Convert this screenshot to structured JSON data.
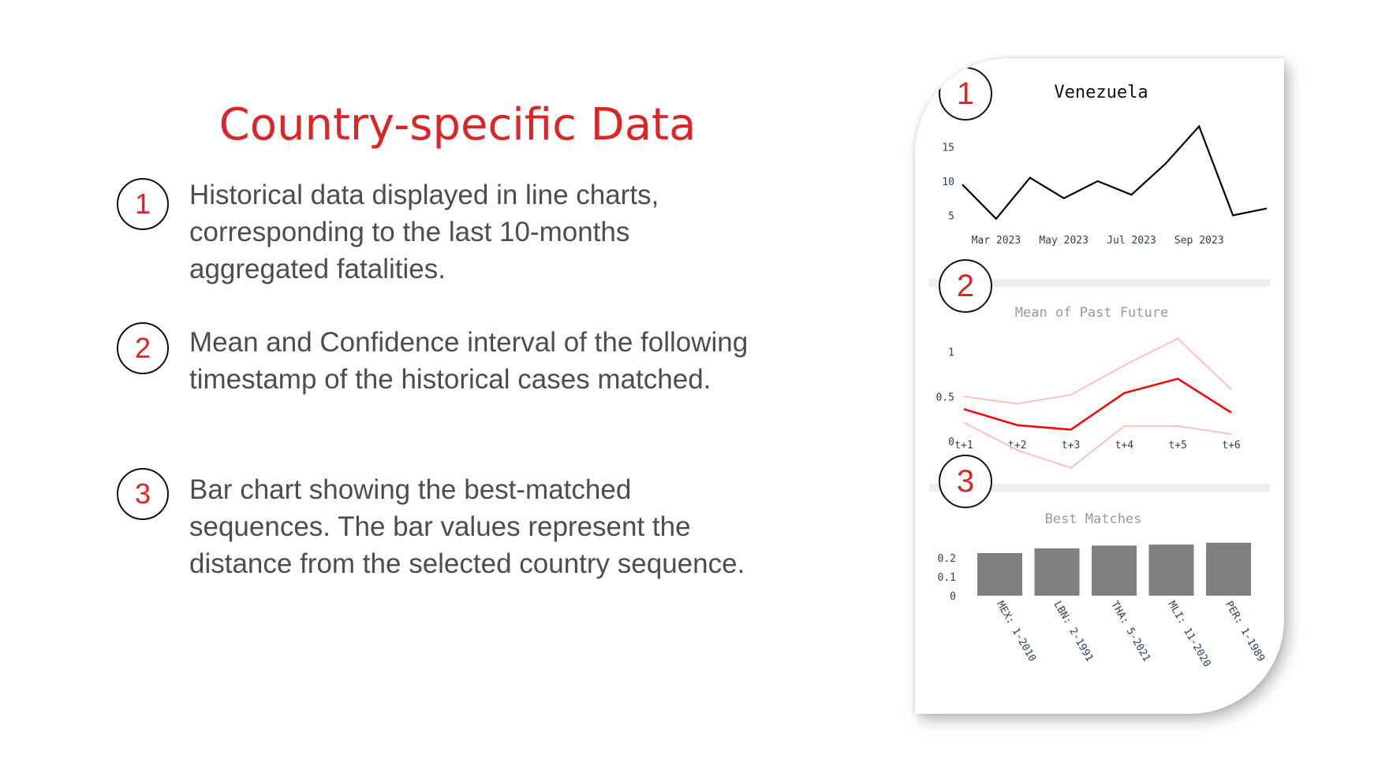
{
  "slide": {
    "title": "Country-specific Data",
    "items": [
      {
        "number": "1",
        "text": "Historical data displayed in line charts, corresponding to the last 10-months aggregated fatalities."
      },
      {
        "number": "2",
        "text": "Mean and Confidence interval of the following timestamp of the historical cases matched."
      },
      {
        "number": "3",
        "text": "Bar chart showing the best-matched sequences. The bar values represent the distance from the selected country sequence."
      }
    ]
  },
  "phone": {
    "badges": [
      "1",
      "2",
      "3"
    ]
  },
  "colors": {
    "accent": "#dd2427",
    "text": "#4d4d4d",
    "mean_line": "#ff0000",
    "ci_line": "#ffc0bf",
    "bar": "#808080"
  },
  "chart_data": [
    {
      "type": "line",
      "title": "Venezuela",
      "x": [
        "2023-02",
        "2023-03",
        "2023-04",
        "2023-05",
        "2023-06",
        "2023-07",
        "2023-08",
        "2023-09",
        "2023-10",
        "2023-11"
      ],
      "x_ticks": [
        "Mar 2023",
        "May 2023",
        "Jul 2023",
        "Sep 2023"
      ],
      "x_tick_dates": [
        "2023-03",
        "2023-05",
        "2023-07",
        "2023-09"
      ],
      "series": [
        {
          "values": [
            9.5,
            4.5,
            10.5,
            7.5,
            10,
            8,
            12.5,
            18,
            5,
            6
          ]
        }
      ],
      "yticks": [
        5,
        10,
        15
      ],
      "ylim": [
        4,
        18.5
      ],
      "grid": false
    },
    {
      "type": "line",
      "title": "Mean of Past Future",
      "categories": [
        "t+1",
        "t+2",
        "t+3",
        "t+4",
        "t+5",
        "t+6"
      ],
      "series": [
        {
          "values": [
            0.5,
            0.42,
            0.52,
            0.85,
            1.15,
            0.58
          ]
        },
        {
          "values": [
            0.36,
            0.18,
            0.13,
            0.54,
            0.7,
            0.32
          ]
        },
        {
          "values": [
            0.21,
            -0.1,
            -0.3,
            0.17,
            0.17,
            0.08
          ]
        }
      ],
      "yticks": [
        "0",
        "0.5",
        "1"
      ],
      "ylim": [
        -0.3,
        1.2
      ],
      "grid": false
    },
    {
      "type": "bar",
      "title": "Best Matches",
      "categories": [
        "MEX: 1-2010",
        "LBN: 2-1991",
        "THA: 5-2021",
        "MLI: 11-2020",
        "PER: 1-1989"
      ],
      "values": [
        0.225,
        0.25,
        0.265,
        0.27,
        0.28
      ],
      "yticks": [
        "0",
        "0.1",
        "0.2"
      ],
      "ylim": [
        0,
        0.3
      ],
      "grid": false
    }
  ]
}
